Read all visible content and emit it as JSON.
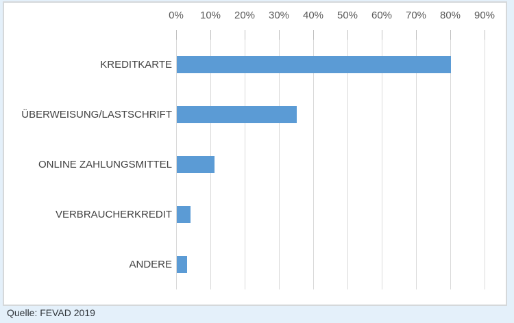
{
  "page": {
    "background_color": "#e4f0fa",
    "panel_background": "#ffffff",
    "panel_border_color": "#d5d8da",
    "source_note": "Quelle: FEVAD 2019"
  },
  "chart_data": {
    "type": "bar",
    "orientation": "horizontal",
    "title": "",
    "xlabel": "",
    "ylabel": "",
    "categories": [
      "KREDITKARTE",
      "ÜBERWEISUNG/LASTSCHRIFT",
      "ONLINE ZAHLUNGSMITTEL",
      "VERBRAUCHERKREDIT",
      "ANDERE"
    ],
    "values": [
      80,
      35,
      11,
      4,
      3
    ],
    "unit": "%",
    "x_axis": {
      "position": "top",
      "min": 0,
      "max": 90,
      "step": 10,
      "tick_labels": [
        "0%",
        "10%",
        "20%",
        "30%",
        "40%",
        "50%",
        "60%",
        "70%",
        "80%",
        "90%"
      ]
    },
    "grid": true,
    "legend": false,
    "bar_color": "#5b9bd5",
    "gridline_color": "#d9d9d9",
    "tick_color": "#bfbfbf",
    "axis_label_color": "#595959",
    "category_label_color": "#3f3f3f"
  }
}
